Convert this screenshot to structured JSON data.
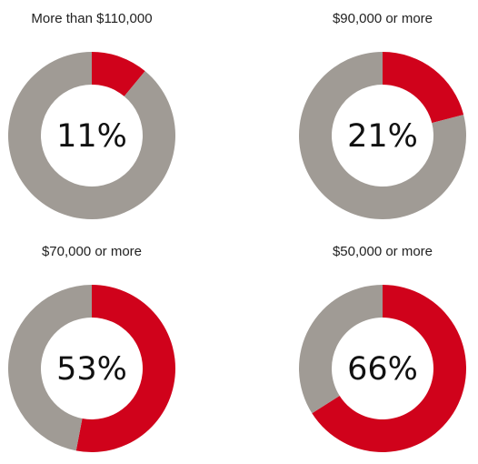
{
  "colors": {
    "highlight": "#d0021b",
    "remainder": "#a09b95"
  },
  "chart_data": [
    {
      "type": "pie",
      "title": "More than $110,000",
      "values": [
        11,
        89
      ],
      "label": "11%"
    },
    {
      "type": "pie",
      "title": "$90,000 or more",
      "values": [
        21,
        79
      ],
      "label": "21%"
    },
    {
      "type": "pie",
      "title": "$70,000 or more",
      "values": [
        53,
        47
      ],
      "label": "53%"
    },
    {
      "type": "pie",
      "title": "$50,000 or more",
      "values": [
        66,
        34
      ],
      "label": "66%"
    }
  ]
}
